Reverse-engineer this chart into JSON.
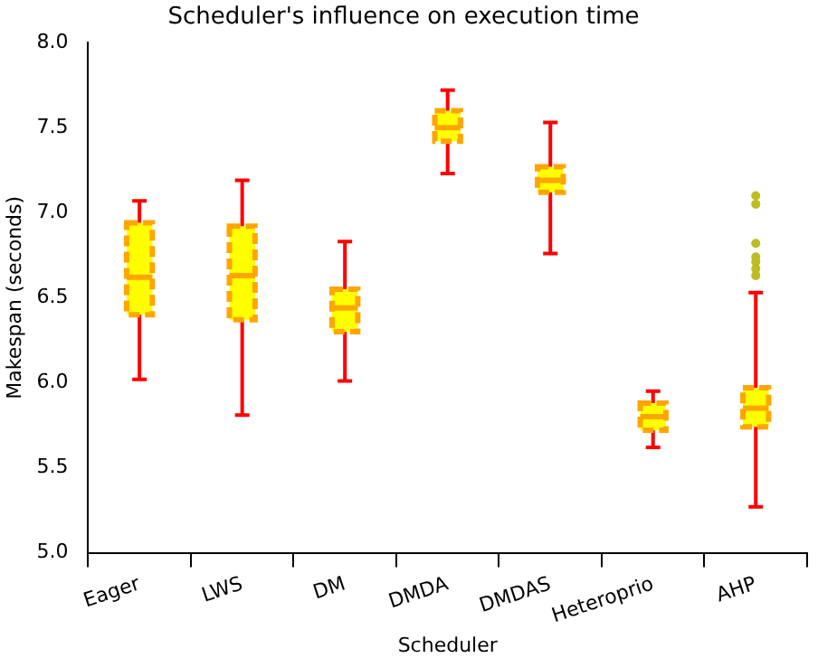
{
  "chart_data": {
    "type": "box",
    "title": "Scheduler's influence on execution time",
    "xlabel": "Scheduler",
    "ylabel": "Makespan (seconds)",
    "categories": [
      "Eager",
      "LWS",
      "DM",
      "DMDA",
      "DMDAS",
      "Heteroprio",
      "AHP"
    ],
    "series": [
      {
        "color": "#ffff00",
        "boxes": [
          {
            "low": 6.02,
            "q1": 6.4,
            "median": 6.62,
            "q3": 6.94,
            "high": 7.07
          },
          {
            "low": 5.81,
            "q1": 6.37,
            "median": 6.63,
            "q3": 6.92,
            "high": 7.19
          },
          {
            "low": 6.01,
            "q1": 6.3,
            "median": 6.44,
            "q3": 6.55,
            "high": 6.83
          },
          {
            "low": 7.23,
            "q1": 7.42,
            "median": 7.5,
            "q3": 7.6,
            "high": 7.72
          },
          {
            "low": 6.76,
            "q1": 7.12,
            "median": 7.19,
            "q3": 7.27,
            "high": 7.53
          },
          {
            "low": 5.62,
            "q1": 5.72,
            "median": 5.8,
            "q3": 5.88,
            "high": 5.95
          },
          {
            "low": 5.27,
            "q1": 5.74,
            "median": 5.85,
            "q3": 5.97,
            "high": 6.53,
            "outliers": [
              7.1,
              7.05,
              6.82,
              6.74,
              6.71,
              6.67,
              6.63
            ]
          }
        ]
      }
    ],
    "ylim": [
      5.0,
      8.0
    ],
    "yticks": [
      {
        "value": 5,
        "label": "5.0"
      },
      5.5,
      {
        "value": 6,
        "label": "6.0"
      },
      6.5,
      {
        "value": 7,
        "label": "7.0"
      },
      7.5,
      {
        "value": 8,
        "label": "8.0"
      }
    ]
  }
}
